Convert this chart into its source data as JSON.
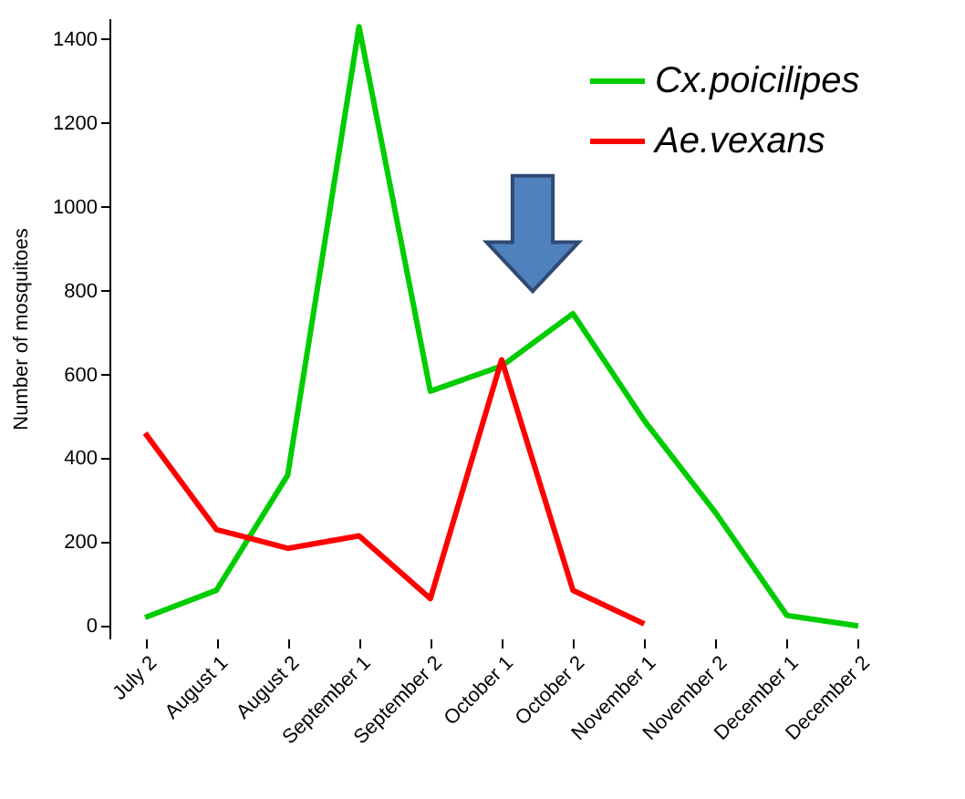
{
  "chart_data": {
    "type": "line",
    "ylabel": "Number of mosquitoes",
    "categories": [
      "July 2",
      "August 1",
      "August 2",
      "September 1",
      "September 2",
      "October 1",
      "October 2",
      "November 1",
      "November 2",
      "December 1",
      "December 2"
    ],
    "series": [
      {
        "name": "Cx.poicilipes",
        "color": "#00cc00",
        "values": [
          20,
          85,
          360,
          1430,
          560,
          620,
          745,
          490,
          270,
          25,
          0
        ]
      },
      {
        "name": "Ae.vexans",
        "color": "#ff0000",
        "values": [
          460,
          230,
          185,
          215,
          65,
          635,
          85,
          5,
          null,
          null,
          null
        ]
      }
    ],
    "ylim": [
      -30,
      1450
    ],
    "yticks": [
      0,
      200,
      400,
      600,
      800,
      1000,
      1200,
      1400
    ],
    "grid": false,
    "legend": "top right",
    "marker": "none",
    "line_style": "solid"
  }
}
